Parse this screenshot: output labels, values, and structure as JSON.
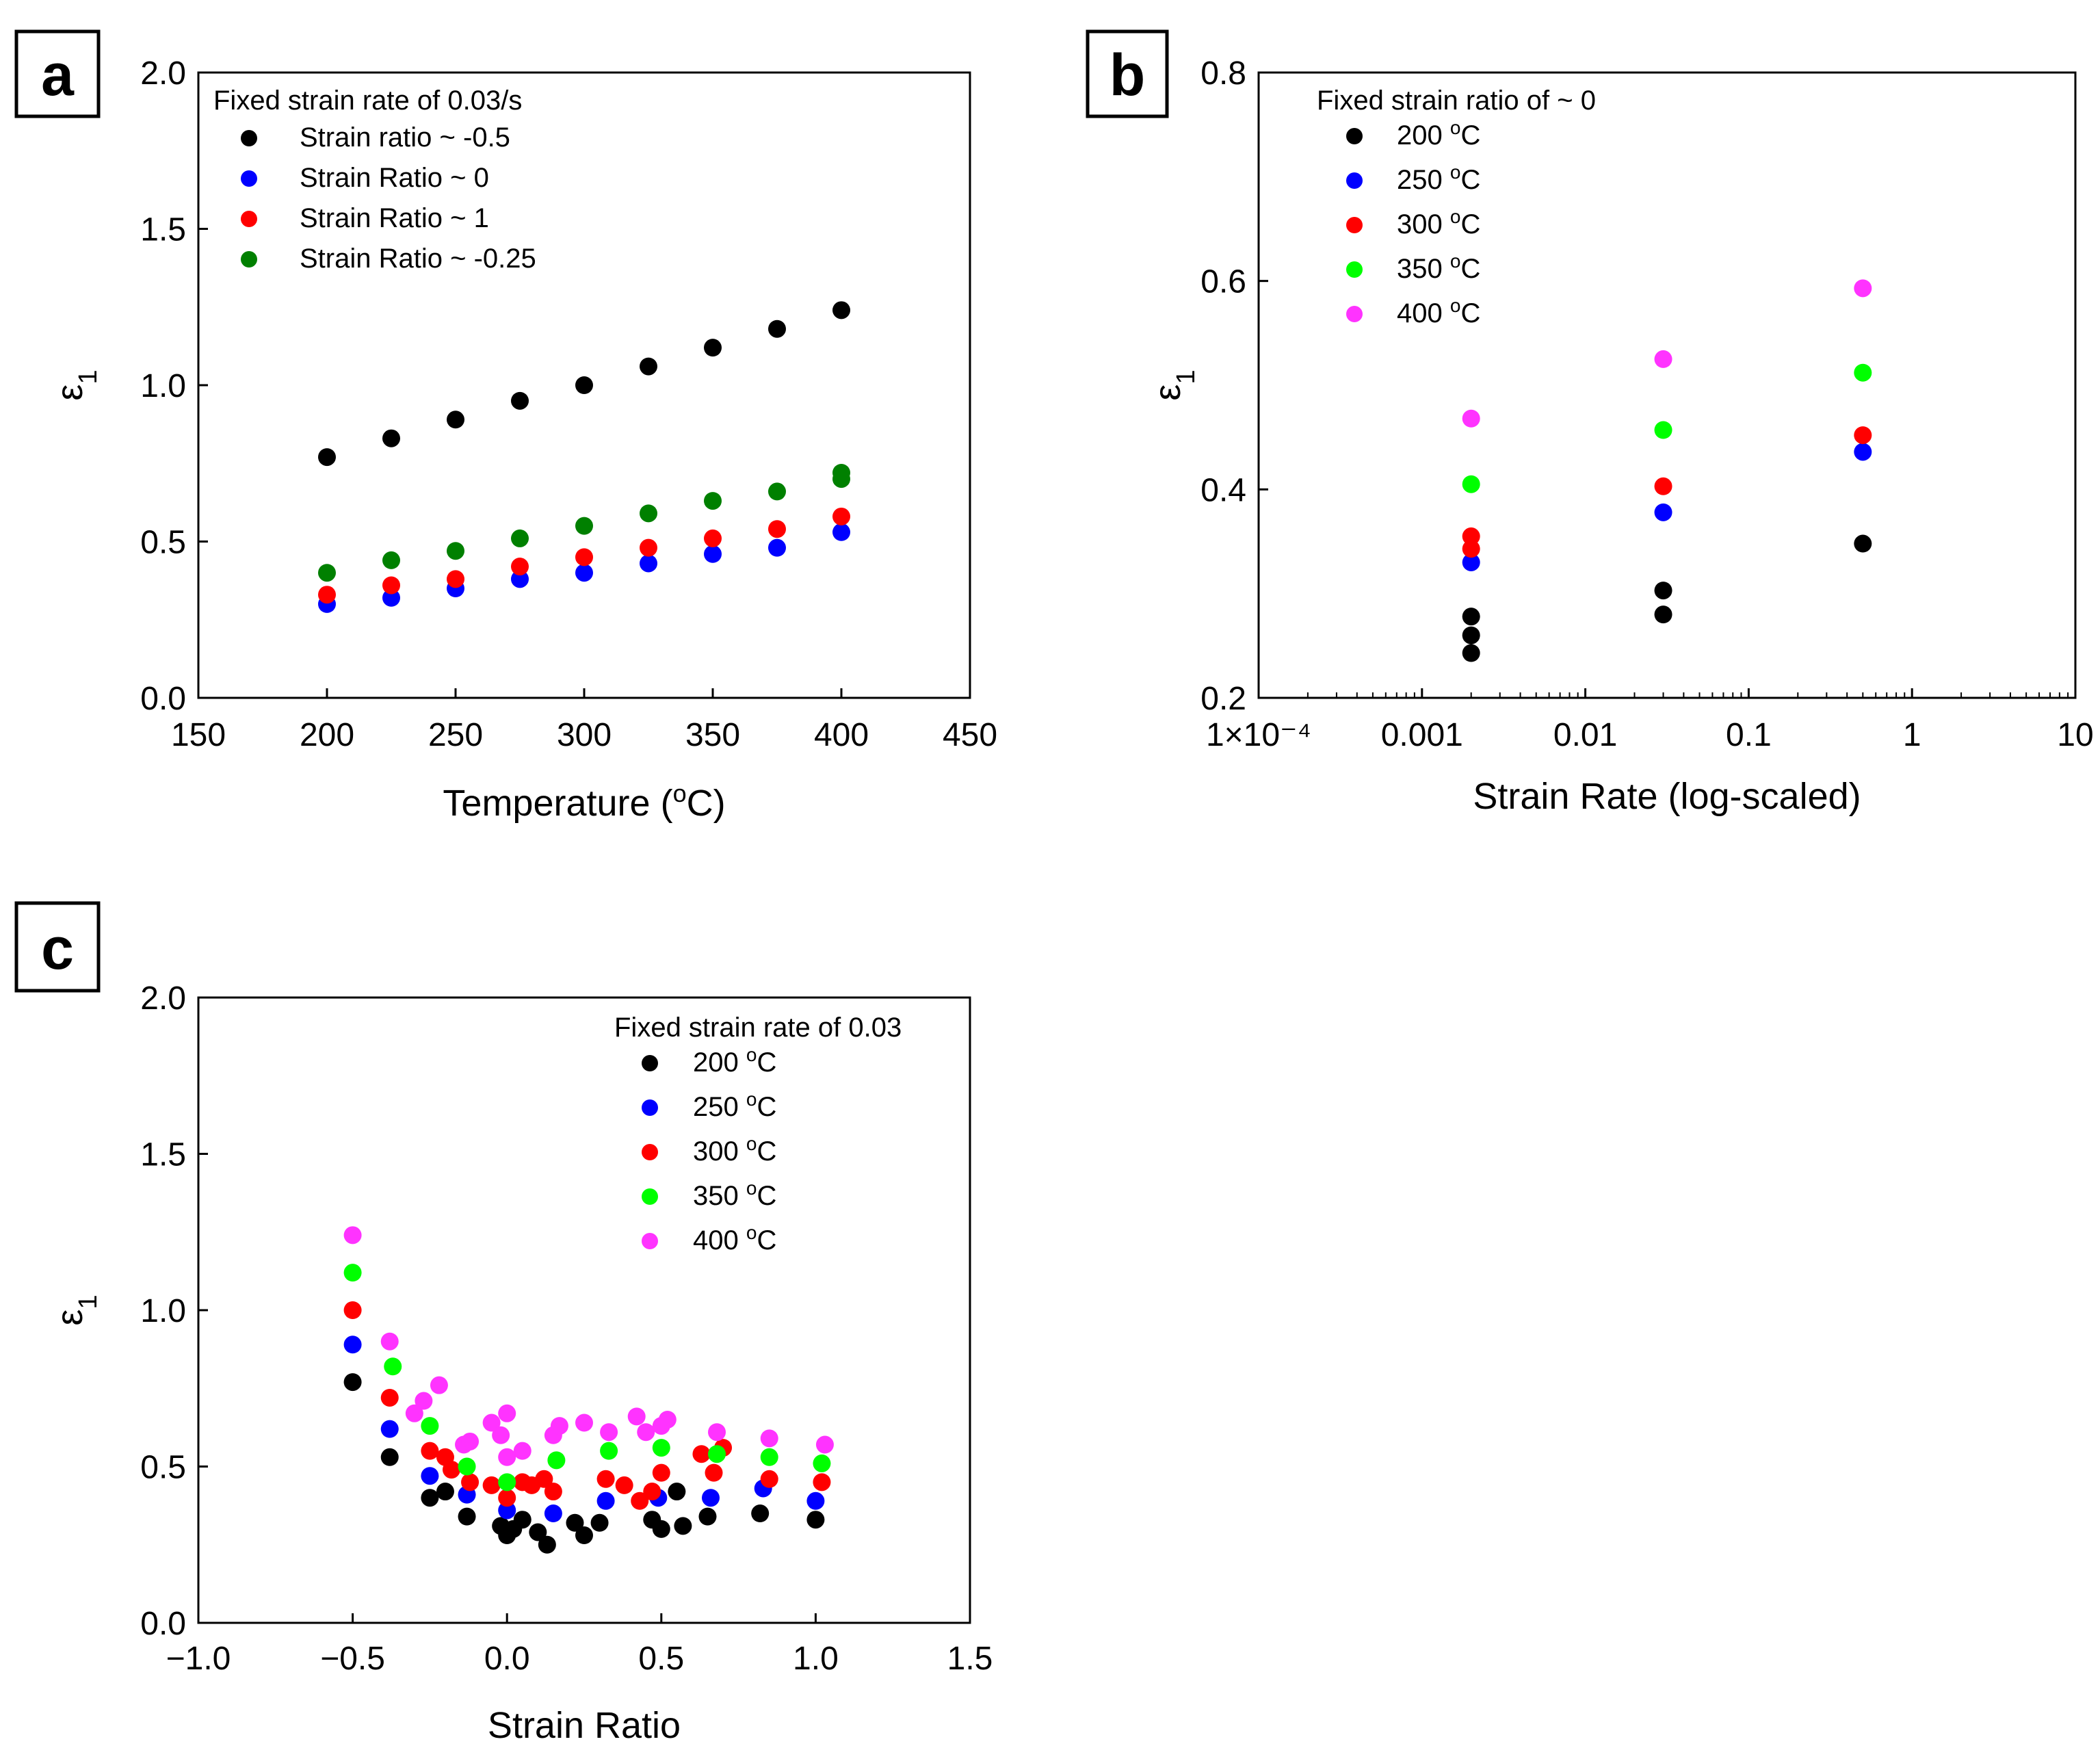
{
  "colors": {
    "black": "#000000",
    "blue": "#0000ff",
    "red": "#ff0000",
    "dark_green": "#008000",
    "green": "#00ff00",
    "magenta": "#ff33ff"
  },
  "chart_data": [
    {
      "panel": "a",
      "type": "scatter",
      "xlabel_main": "Temperature (",
      "xlabel_sup": "o",
      "xlabel_end": "C)",
      "ylabel": "ε",
      "ylabel_sub": "1",
      "xlim": [
        150,
        450
      ],
      "ylim": [
        0,
        2
      ],
      "xticks": [
        "150",
        "200",
        "250",
        "300",
        "350",
        "400",
        "450"
      ],
      "yticks": [
        "0.0",
        "0.5",
        "1.0",
        "1.5",
        "2.0"
      ],
      "legend_title": "Fixed strain rate of 0.03/s",
      "legend_position": "top-left",
      "series": [
        {
          "name": "Strain ratio ~ -0.5",
          "color": "black",
          "x": [
            200,
            225,
            250,
            275,
            300,
            325,
            350,
            375,
            400
          ],
          "y": [
            0.77,
            0.83,
            0.89,
            0.95,
            1.0,
            1.06,
            1.12,
            1.18,
            1.24
          ]
        },
        {
          "name": "Strain Ratio ~ 0",
          "color": "blue",
          "x": [
            200,
            225,
            250,
            275,
            300,
            325,
            350,
            375,
            400
          ],
          "y": [
            0.3,
            0.32,
            0.35,
            0.38,
            0.4,
            0.43,
            0.46,
            0.48,
            0.53
          ]
        },
        {
          "name": "Strain Ratio ~ 1",
          "color": "red",
          "x": [
            200,
            225,
            250,
            275,
            300,
            325,
            350,
            375,
            400
          ],
          "y": [
            0.33,
            0.36,
            0.38,
            0.42,
            0.45,
            0.48,
            0.51,
            0.54,
            0.58
          ]
        },
        {
          "name": "Strain Ratio ~ -0.25",
          "color": "dark_green",
          "x": [
            200,
            225,
            250,
            275,
            300,
            325,
            350,
            375,
            400,
            400
          ],
          "y": [
            0.4,
            0.44,
            0.47,
            0.51,
            0.55,
            0.59,
            0.63,
            0.66,
            0.7,
            0.72
          ]
        }
      ]
    },
    {
      "panel": "b",
      "type": "scatter",
      "xscale": "log",
      "xlabel": "Strain Rate (log-scaled)",
      "ylabel": "ε",
      "ylabel_sub": "1",
      "xlim": [
        0.0001,
        10
      ],
      "ylim": [
        0.2,
        0.8
      ],
      "xticks": [
        {
          "value": 0.0001,
          "label": "1×10⁻⁴"
        },
        {
          "value": 0.001,
          "label": "0.001"
        },
        {
          "value": 0.01,
          "label": "0.01"
        },
        {
          "value": 0.1,
          "label": "0.1"
        },
        {
          "value": 1,
          "label": "1"
        },
        {
          "value": 10,
          "label": "10"
        }
      ],
      "yticks": [
        "0.2",
        "0.4",
        "0.6",
        "0.8"
      ],
      "legend_title": "Fixed strain ratio of ~ 0",
      "legend_position": "top-left",
      "series": [
        {
          "name": "200 ",
          "name_sup": "o",
          "name_end": "C",
          "color": "black",
          "x": [
            0.002,
            0.002,
            0.002,
            0.03,
            0.03,
            0.5
          ],
          "y": [
            0.243,
            0.26,
            0.278,
            0.28,
            0.303,
            0.348
          ]
        },
        {
          "name": "250 ",
          "name_sup": "o",
          "name_end": "C",
          "color": "blue",
          "x": [
            0.002,
            0.03,
            0.5
          ],
          "y": [
            0.33,
            0.378,
            0.436
          ]
        },
        {
          "name": "300 ",
          "name_sup": "o",
          "name_end": "C",
          "color": "red",
          "x": [
            0.002,
            0.002,
            0.03,
            0.5
          ],
          "y": [
            0.343,
            0.355,
            0.403,
            0.452
          ]
        },
        {
          "name": "350 ",
          "name_sup": "o",
          "name_end": "C",
          "color": "green",
          "x": [
            0.002,
            0.03,
            0.5
          ],
          "y": [
            0.405,
            0.457,
            0.512
          ]
        },
        {
          "name": "400 ",
          "name_sup": "o",
          "name_end": "C",
          "color": "magenta",
          "x": [
            0.002,
            0.03,
            0.5
          ],
          "y": [
            0.468,
            0.525,
            0.593
          ]
        }
      ]
    },
    {
      "panel": "c",
      "type": "scatter",
      "xlabel": "Strain Ratio",
      "ylabel": "ε",
      "ylabel_sub": "1",
      "xlim": [
        -1.0,
        1.5
      ],
      "ylim": [
        0,
        2
      ],
      "xticks": [
        "−1.0",
        "−0.5",
        "0.0",
        "0.5",
        "1.0",
        "1.5"
      ],
      "yticks": [
        "0.0",
        "0.5",
        "1.0",
        "1.5",
        "2.0"
      ],
      "legend_title": "Fixed strain rate of 0.03",
      "legend_position": "top-right",
      "series": [
        {
          "name": "200 ",
          "name_sup": "o",
          "name_end": "C",
          "color": "black",
          "x": [
            -0.5,
            -0.38,
            -0.25,
            -0.2,
            -0.13,
            -0.02,
            0.0,
            0.02,
            0.05,
            0.1,
            0.13,
            0.22,
            0.25,
            0.3,
            0.47,
            0.5,
            0.55,
            0.57,
            0.65,
            0.82,
            1.0
          ],
          "y": [
            0.77,
            0.53,
            0.4,
            0.42,
            0.34,
            0.31,
            0.28,
            0.3,
            0.33,
            0.29,
            0.25,
            0.32,
            0.28,
            0.32,
            0.33,
            0.3,
            0.42,
            0.31,
            0.34,
            0.35,
            0.33
          ]
        },
        {
          "name": "250 ",
          "name_sup": "o",
          "name_end": "C",
          "color": "blue",
          "x": [
            -0.5,
            -0.38,
            -0.25,
            -0.13,
            0.0,
            0.15,
            0.32,
            0.49,
            0.66,
            0.83,
            1.0
          ],
          "y": [
            0.89,
            0.62,
            0.47,
            0.41,
            0.36,
            0.35,
            0.39,
            0.4,
            0.4,
            0.43,
            0.39
          ]
        },
        {
          "name": "300 ",
          "name_sup": "o",
          "name_end": "C",
          "color": "red",
          "x": [
            -0.5,
            -0.38,
            -0.25,
            -0.2,
            -0.18,
            -0.12,
            -0.05,
            0.0,
            0.05,
            0.08,
            0.12,
            0.15,
            0.32,
            0.38,
            0.43,
            0.47,
            0.5,
            0.63,
            0.67,
            0.7,
            0.85,
            1.02
          ],
          "y": [
            1.0,
            0.72,
            0.55,
            0.53,
            0.49,
            0.45,
            0.44,
            0.4,
            0.45,
            0.44,
            0.46,
            0.42,
            0.46,
            0.44,
            0.39,
            0.42,
            0.48,
            0.54,
            0.48,
            0.56,
            0.46,
            0.45
          ]
        },
        {
          "name": "350 ",
          "name_sup": "o",
          "name_end": "C",
          "color": "green",
          "x": [
            -0.5,
            -0.37,
            -0.25,
            -0.13,
            0.0,
            0.16,
            0.33,
            0.5,
            0.68,
            0.85,
            1.02
          ],
          "y": [
            1.12,
            0.82,
            0.63,
            0.5,
            0.45,
            0.52,
            0.55,
            0.56,
            0.54,
            0.53,
            0.51
          ]
        },
        {
          "name": "400 ",
          "name_sup": "o",
          "name_end": "C",
          "color": "magenta",
          "x": [
            -0.5,
            -0.38,
            -0.3,
            -0.27,
            -0.22,
            -0.14,
            -0.12,
            -0.05,
            -0.02,
            0.0,
            0.0,
            0.05,
            0.15,
            0.17,
            0.25,
            0.33,
            0.42,
            0.45,
            0.5,
            0.52,
            0.68,
            0.85,
            1.03
          ],
          "y": [
            1.24,
            0.9,
            0.67,
            0.71,
            0.76,
            0.57,
            0.58,
            0.64,
            0.6,
            0.67,
            0.53,
            0.55,
            0.6,
            0.63,
            0.64,
            0.61,
            0.66,
            0.61,
            0.63,
            0.65,
            0.61,
            0.59,
            0.57
          ]
        }
      ]
    }
  ]
}
